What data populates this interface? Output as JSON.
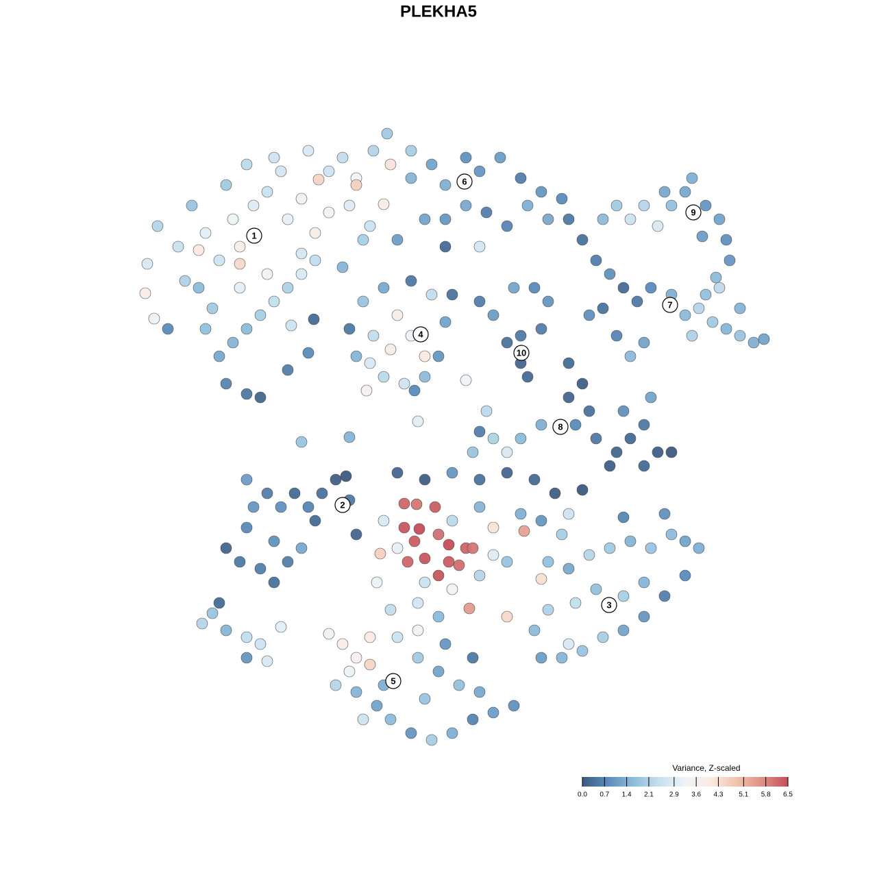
{
  "chart_data": {
    "type": "scatter",
    "title": "PLEKHA5",
    "xlim": [
      200,
      1130
    ],
    "ylim": [
      1090,
      185
    ],
    "colorbar_title": "Variance, Z-scaled",
    "clim": [
      0,
      6.5
    ],
    "colormap": [
      "#3c5a80",
      "#5b8cbb",
      "#8fbddb",
      "#c6dfee",
      "#eef4f8",
      "#fbeae2",
      "#f2c2ad",
      "#e08f86",
      "#c44e5a"
    ],
    "cticks": [
      {
        "value": 0,
        "label": "0.0"
      },
      0.7,
      1.4,
      2.1,
      2.9,
      3.6,
      4.3,
      5.1,
      5.8,
      6.5
    ],
    "annotations": [
      {
        "text": "1",
        "x": 371,
        "y": 344
      },
      {
        "text": "2",
        "x": 500,
        "y": 737
      },
      {
        "text": "3",
        "x": 889,
        "y": 883
      },
      {
        "text": "4",
        "x": 614,
        "y": 488
      },
      {
        "text": "5",
        "x": 574,
        "y": 994
      },
      {
        "text": "6",
        "x": 678,
        "y": 265
      },
      {
        "text": "7",
        "x": 978,
        "y": 445
      },
      {
        "text": "8",
        "x": 818,
        "y": 623
      },
      {
        "text": "9",
        "x": 1012,
        "y": 310
      },
      {
        "text": "10",
        "x": 761,
        "y": 515
      }
    ],
    "x": [
      230,
      215,
      212,
      225,
      245,
      260,
      280,
      300,
      290,
      320,
      340,
      350,
      370,
      390,
      410,
      420,
      440,
      460,
      480,
      500,
      520,
      545,
      565,
      570,
      560,
      540,
      510,
      480,
      460,
      440,
      420,
      400,
      380,
      360,
      340,
      320,
      330,
      360,
      380,
      310,
      290,
      350,
      390,
      300,
      420,
      440,
      500,
      530,
      330,
      360,
      400,
      450,
      350,
      465,
      520,
      270,
      510,
      530,
      560,
      600,
      630,
      650,
      640,
      620,
      590,
      560,
      540,
      520,
      580,
      600,
      570,
      620,
      545,
      535,
      660,
      605,
      600,
      630,
      650,
      680,
      700,
      730,
      760,
      790,
      820,
      830,
      800,
      770,
      740,
      710,
      680,
      650,
      620,
      600,
      580,
      650,
      700,
      850,
      870,
      890,
      910,
      930,
      950,
      980,
      1000,
      1020,
      1040,
      1060,
      1080,
      1100,
      1115,
      1030,
      1050,
      1010,
      940,
      920,
      900,
      860,
      880,
      1080,
      880,
      900,
      920,
      940,
      960,
      980,
      1000,
      1010,
      1030,
      1050,
      1060,
      1065,
      1025,
      970,
      1045,
      700,
      720,
      750,
      780,
      800,
      760,
      760,
      770,
      740,
      790,
      830,
      850,
      860,
      830,
      840,
      870,
      900,
      920,
      940,
      960,
      980,
      940,
      890,
      910,
      950,
      790,
      760,
      720,
      700,
      690,
      740,
      710,
      680,
      610,
      330,
      350,
      360,
      370,
      390,
      410,
      430,
      450,
      470,
      490,
      510,
      520,
      400,
      420,
      440,
      400,
      380,
      360,
      460,
      505,
      580,
      620,
      660,
      700,
      740,
      780,
      810,
      850,
      590,
      608,
      635,
      590,
      612,
      640,
      605,
      655,
      680,
      690,
      620,
      655,
      595,
      640,
      670,
      555,
      765,
      685,
      720,
      560,
      580,
      620,
      660,
      700,
      740,
      760,
      790,
      820,
      700,
      660,
      550,
      570,
      610,
      640,
      740,
      790,
      830,
      720,
      800,
      830,
      860,
      890,
      920,
      950,
      980,
      1000,
      1020,
      1000,
      970,
      940,
      910,
      880,
      850,
      820,
      790,
      780,
      800,
      840,
      870,
      910,
      940,
      970,
      910,
      830,
      480,
      500,
      520,
      540,
      510,
      490,
      520,
      550,
      570,
      600,
      630,
      660,
      690,
      720,
      750,
      700,
      670,
      640,
      610,
      580,
      560,
      620,
      650,
      690,
      610,
      540,
      530,
      295,
      310,
      330,
      360,
      380,
      360,
      390,
      320,
      410,
      458,
      425,
      450,
      510,
      440
    ],
    "y": [
      330,
      385,
      428,
      465,
      480,
      360,
      300,
      340,
      365,
      380,
      320,
      360,
      300,
      280,
      250,
      320,
      290,
      340,
      250,
      230,
      260,
      220,
      195,
      240,
      298,
      330,
      300,
      310,
      380,
      400,
      420,
      440,
      460,
      480,
      500,
      520,
      560,
      575,
      580,
      450,
      420,
      420,
      400,
      480,
      540,
      370,
      390,
      350,
      270,
      240,
      230,
      220,
      385,
      262,
      270,
      410,
      480,
      440,
      420,
      410,
      430,
      470,
      520,
      550,
      560,
      550,
      530,
      520,
      460,
      490,
      510,
      520,
      490,
      570,
      430,
      570,
      220,
      240,
      270,
      230,
      250,
      230,
      260,
      280,
      290,
      320,
      320,
      300,
      330,
      310,
      300,
      320,
      320,
      260,
      350,
      360,
      360,
      350,
      380,
      400,
      420,
      440,
      420,
      430,
      460,
      450,
      470,
      480,
      490,
      500,
      495,
      430,
      420,
      490,
      500,
      520,
      490,
      460,
      450,
      450,
      320,
      300,
      320,
      300,
      330,
      300,
      280,
      260,
      300,
      320,
      350,
      380,
      345,
      280,
      405,
      440,
      460,
      420,
      420,
      440,
      490,
      530,
      550,
      500,
      480,
      530,
      560,
      600,
      580,
      620,
      640,
      660,
      640,
      620,
      660,
      660,
      680,
      680,
      600,
      580,
      620,
      640,
      640,
      630,
      660,
      660,
      600,
      555,
      615,
      800,
      820,
      770,
      740,
      720,
      740,
      720,
      740,
      720,
      700,
      730,
      780,
      790,
      820,
      800,
      850,
      830,
      700,
      760,
      695,
      690,
      700,
      690,
      700,
      690,
      700,
      720,
      715,
      735,
      736,
      740,
      770,
      772,
      780,
      790,
      795,
      800,
      800,
      815,
      820,
      820,
      840,
      825,
      808,
      775,
      888,
      770,
      760,
      800,
      850,
      860,
      840,
      820,
      750,
      760,
      780,
      740,
      760,
      850,
      890,
      880,
      900,
      900,
      845,
      750,
      810,
      820,
      830,
      810,
      800,
      790,
      800,
      780,
      790,
      800,
      840,
      870,
      900,
      920,
      930,
      950,
      960,
      960,
      920,
      890,
      880,
      860,
      870,
      850,
      750,
      755,
      940,
      925,
      940,
      960,
      970,
      980,
      1000,
      1010,
      1030,
      1050,
      1070,
      1080,
      1070,
      1050,
      1040,
      1030,
      1010,
      1000,
      980,
      960,
      930,
      1000,
      1020,
      940,
      960,
      920,
      930,
      1050,
      910,
      895,
      920,
      930,
      940,
      960,
      965,
      880,
      915,
      466,
      475,
      515,
      638,
      645
    ],
    "values": [
      2.2,
      2.8,
      3.9,
      3.2,
      0.8,
      2.5,
      1.8,
      3.0,
      4.1,
      2.6,
      3.2,
      3.8,
      2.9,
      2.5,
      2.7,
      3.1,
      3.5,
      3.8,
      2.6,
      2.4,
      3.3,
      2.2,
      1.9,
      4.2,
      4.0,
      2.5,
      2.9,
      3.4,
      2.4,
      2.8,
      2.1,
      2.4,
      2.0,
      1.6,
      1.5,
      1.3,
      0.7,
      0.5,
      0.2,
      1.9,
      1.6,
      3.0,
      3.4,
      1.7,
      0.6,
      2.7,
      1.5,
      2.0,
      1.9,
      2.3,
      2.6,
      2.8,
      4.4,
      4.5,
      4.6,
      2.1,
      0.5,
      1.8,
      1.3,
      0.5,
      2.4,
      1.2,
      1.0,
      1.6,
      2.6,
      2.3,
      2.8,
      1.5,
      3.8,
      3.2,
      3.9,
      4.0,
      2.4,
      3.6,
      0.4,
      0.8,
      2.0,
      1.2,
      1.4,
      0.9,
      1.0,
      1.1,
      0.6,
      1.0,
      0.8,
      0.5,
      1.3,
      1.4,
      0.7,
      0.6,
      1.3,
      1.0,
      1.2,
      1.5,
      1.1,
      0.3,
      2.7,
      0.4,
      0.6,
      0.9,
      0.3,
      0.5,
      0.8,
      1.4,
      1.6,
      2.2,
      1.9,
      1.5,
      1.8,
      1.4,
      1.2,
      1.7,
      2.3,
      2.1,
      1.2,
      1.6,
      0.7,
      0.9,
      0.4,
      1.5,
      1.6,
      1.9,
      2.5,
      2.2,
      2.8,
      1.7,
      1.3,
      1.4,
      1.0,
      1.2,
      0.9,
      1.0,
      1.1,
      1.3,
      1.6,
      0.6,
      1.1,
      1.2,
      0.8,
      1.0,
      0.5,
      0.2,
      0.3,
      0.4,
      0.6,
      0.3,
      0.1,
      0.4,
      0.2,
      0.8,
      0.5,
      0.2,
      0.3,
      0.5,
      0.1,
      0.0,
      0.3,
      0.1,
      0.9,
      1.2,
      1.4,
      1.6,
      2.1,
      0.6,
      1.8,
      2.8,
      2.3,
      3.3,
      3.0,
      0.2,
      0.5,
      0.8,
      1.0,
      0.6,
      0.9,
      0.3,
      0.7,
      0.4,
      0.1,
      0.5,
      0.2,
      0.9,
      0.6,
      1.3,
      0.4,
      0.6,
      1.1,
      0.3,
      0.0,
      0.2,
      0.1,
      1.0,
      0.4,
      0.2,
      0.3,
      0.1,
      0.0,
      6.2,
      6.0,
      6.3,
      6.4,
      6.5,
      6.1,
      6.3,
      6.5,
      6.2,
      6.0,
      6.4,
      6.3,
      6.2,
      6.4,
      6.1,
      4.6,
      5.4,
      5.5,
      4.2,
      2.8,
      3.1,
      2.5,
      3.4,
      2.2,
      1.8,
      1.4,
      1.0,
      2.0,
      1.5,
      2.3,
      3.2,
      2.4,
      2.7,
      1.6,
      4.4,
      4.3,
      2.6,
      2.9,
      1.7,
      1.3,
      2.2,
      1.9,
      1.5,
      1.8,
      1.6,
      1.2,
      1.4,
      0.8,
      0.6,
      1.0,
      1.2,
      2.0,
      1.8,
      1.5,
      1.1,
      1.6,
      2.1,
      2.4,
      1.7,
      2.0,
      1.5,
      0.9,
      0.7,
      2.8,
      3.5,
      3.9,
      3.7,
      4.5,
      3.2,
      2.2,
      1.5,
      1.2,
      1.6,
      1.0,
      2.0,
      1.4,
      0.7,
      1.1,
      0.9,
      1.3,
      1.7,
      1.2,
      1.9,
      2.5,
      1.4,
      1.8,
      1.0,
      0.5,
      3.6,
      4.0,
      2.6,
      2.2,
      1.8,
      1.5,
      2.4,
      2.6,
      1.0,
      2.8,
      0.3,
      3.0,
      0.3,
      2.6,
      0.8,
      1.5,
      1.8
    ]
  }
}
